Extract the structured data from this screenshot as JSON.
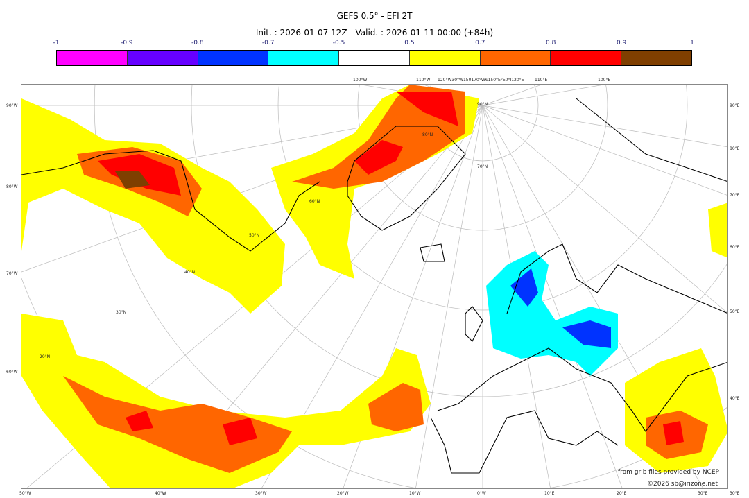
{
  "title": "GEFS 0.5° - EFI 2T",
  "subtitle": "Init. : 2026-01-07 12Z - Valid. : 2026-01-11 00:00 (+84h)",
  "colorbar": {
    "ticks": [
      "-1",
      "-0.9",
      "-0.8",
      "-0.7",
      "-0.5",
      "0.5",
      "0.7",
      "0.8",
      "0.9",
      "1"
    ],
    "colors": [
      "#ff00ff",
      "#6600ff",
      "#0033ff",
      "#00ffff",
      "#ffffff",
      "#ffff00",
      "#ff6600",
      "#ff0000",
      "#7f3f00"
    ]
  },
  "labels": {
    "left": [
      "90°W",
      "80°W",
      "70°W",
      "60°W"
    ],
    "right": [
      "90°E",
      "80°E",
      "70°E",
      "60°E",
      "50°E",
      "40°E",
      "30°E"
    ],
    "bottom": [
      "50°W",
      "40°W",
      "30°W",
      "20°W",
      "10°W",
      "0°W",
      "10°E",
      "20°E",
      "30°E"
    ],
    "top": [
      "100°W",
      "110°W",
      "120°W30°W150170°W€150°E°E0°I120°E",
      "110°E",
      "100°E"
    ],
    "lat": [
      "90°N",
      "80°N",
      "70°N",
      "60°N",
      "50°N",
      "40°N",
      "30°N",
      "20°N"
    ]
  },
  "credits": {
    "source": "from grib files provided by NCEP",
    "copyright": "©2026 sb@irizone.net"
  }
}
